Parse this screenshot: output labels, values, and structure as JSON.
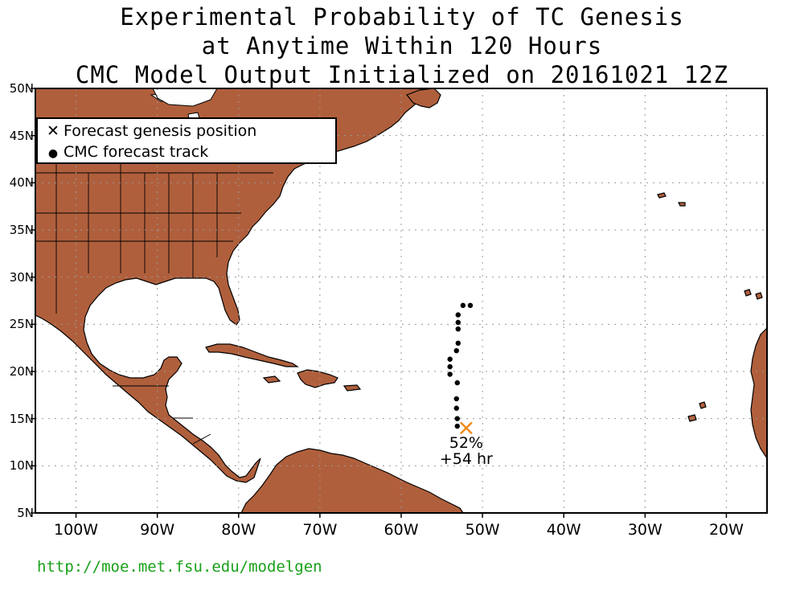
{
  "title": {
    "line1": "Experimental Probability of TC Genesis",
    "line2": "at Anytime Within 120 Hours",
    "line3": "CMC Model Output Initialized on 20161021 12Z"
  },
  "map": {
    "lon_range": [
      -105,
      -15
    ],
    "lat_range": [
      5,
      50
    ],
    "grid": true,
    "land_color": "#b05f3c",
    "ocean_color": "#ffffff",
    "lat_labels": [
      "50N",
      "45N",
      "40N",
      "35N",
      "30N",
      "25N",
      "20N",
      "15N",
      "10N",
      "5N"
    ],
    "lon_labels": [
      "100W",
      "90W",
      "80W",
      "70W",
      "60W",
      "50W",
      "40W",
      "30W",
      "20W"
    ]
  },
  "legend": {
    "genesis_label": "Forecast genesis position",
    "track_label": "CMC forecast track",
    "genesis_symbol": "✕",
    "track_symbol": "●"
  },
  "track": {
    "color": "#000000",
    "points": [
      {
        "lon": -51.5,
        "lat": 27.0
      },
      {
        "lon": -52.4,
        "lat": 27.0
      },
      {
        "lon": -53.0,
        "lat": 26.0
      },
      {
        "lon": -53.0,
        "lat": 25.2
      },
      {
        "lon": -53.0,
        "lat": 24.5
      },
      {
        "lon": -53.0,
        "lat": 23.0
      },
      {
        "lon": -53.2,
        "lat": 22.2
      },
      {
        "lon": -54.0,
        "lat": 21.3
      },
      {
        "lon": -54.0,
        "lat": 20.5
      },
      {
        "lon": -54.0,
        "lat": 19.7
      },
      {
        "lon": -53.1,
        "lat": 18.8
      },
      {
        "lon": -53.2,
        "lat": 17.1
      },
      {
        "lon": -53.2,
        "lat": 16.1
      },
      {
        "lon": -53.1,
        "lat": 15.0
      },
      {
        "lon": -53.1,
        "lat": 14.2
      }
    ]
  },
  "genesis": {
    "lon": -52.0,
    "lat": 14.0,
    "color": "#f08c1e",
    "probability": "52%",
    "lead_time": "+54 hr"
  },
  "footer": {
    "url": "http://moe.met.fsu.edu/modelgen",
    "url_color": "#1aa01a"
  }
}
